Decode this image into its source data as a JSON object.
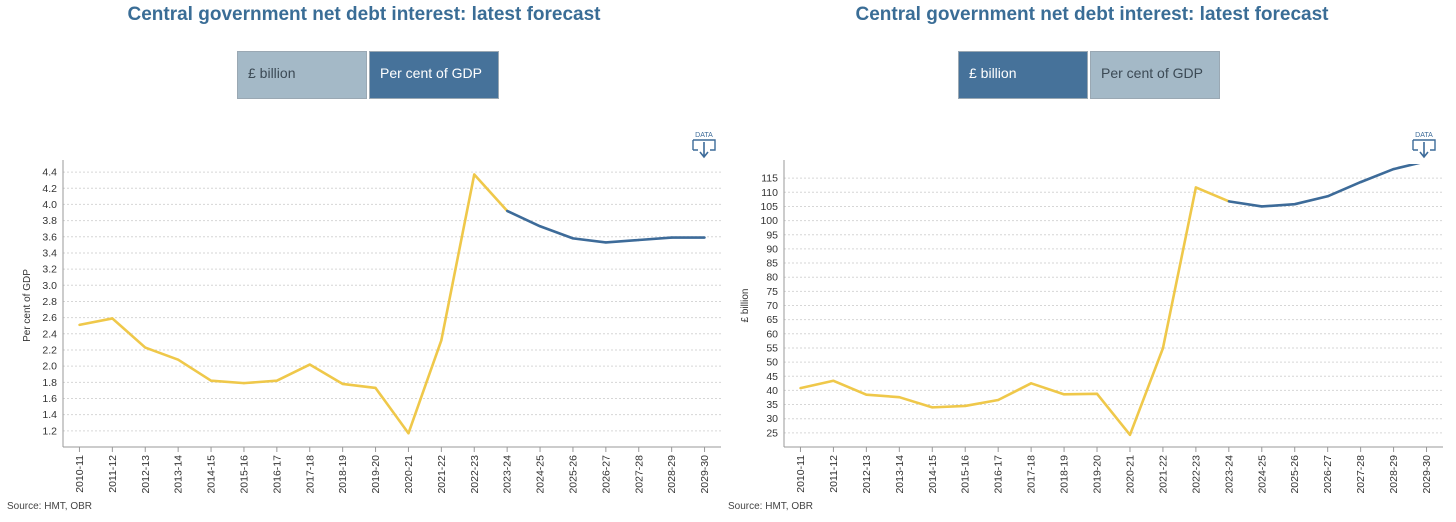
{
  "colors": {
    "historical": "#efc84a",
    "forecast": "#3d6b99",
    "active_tab": "#46729a",
    "inactive_tab": "#a4b9c7",
    "title": "#3a6d96"
  },
  "left_panel": {
    "title": "Central government net debt interest: latest forecast",
    "tabs": [
      {
        "label": "£ billion",
        "state": "inactive"
      },
      {
        "label": "Per cent of GDP",
        "state": "active"
      }
    ],
    "data_icon_label": "DATA",
    "source": "Source: HMT, OBR"
  },
  "right_panel": {
    "title": "Central government net debt interest: latest forecast",
    "tabs": [
      {
        "label": "£ billion",
        "state": "active"
      },
      {
        "label": "Per cent of GDP",
        "state": "inactive"
      }
    ],
    "data_icon_label": "DATA",
    "source": "Source: HMT, OBR"
  },
  "chart_data": [
    {
      "type": "line",
      "title": "Central government net debt interest: latest forecast",
      "xlabel": "",
      "ylabel": "Per cent of GDP",
      "ylim": [
        1.0,
        4.5
      ],
      "yticks": [
        1.2,
        1.4,
        1.6,
        1.8,
        2.0,
        2.2,
        2.4,
        2.6,
        2.8,
        3.0,
        3.2,
        3.4,
        3.6,
        3.8,
        4.0,
        4.2,
        4.4
      ],
      "categories": [
        "2010-11",
        "2011-12",
        "2012-13",
        "2013-14",
        "2014-15",
        "2015-16",
        "2016-17",
        "2017-18",
        "2018-19",
        "2019-20",
        "2020-21",
        "2021-22",
        "2022-23",
        "2023-24",
        "2024-25",
        "2025-26",
        "2026-27",
        "2027-28",
        "2028-29",
        "2029-30"
      ],
      "grid": true,
      "series": [
        {
          "role": "outturn",
          "values": [
            2.51,
            2.59,
            2.23,
            2.08,
            1.82,
            1.79,
            1.82,
            2.02,
            1.78,
            1.73,
            1.17,
            2.32,
            4.37,
            3.92,
            null,
            null,
            null,
            null,
            null,
            null
          ]
        },
        {
          "role": "forecast",
          "values": [
            null,
            null,
            null,
            null,
            null,
            null,
            null,
            null,
            null,
            null,
            null,
            null,
            null,
            3.92,
            3.73,
            3.58,
            3.53,
            3.56,
            3.59,
            3.59
          ]
        }
      ]
    },
    {
      "type": "line",
      "title": "Central government net debt interest: latest forecast",
      "xlabel": "",
      "ylabel": "£ billion",
      "ylim": [
        20,
        120
      ],
      "yticks": [
        25,
        30,
        35,
        40,
        45,
        50,
        55,
        60,
        65,
        70,
        75,
        80,
        85,
        90,
        95,
        100,
        105,
        110,
        115
      ],
      "categories": [
        "2010-11",
        "2011-12",
        "2012-13",
        "2013-14",
        "2014-15",
        "2015-16",
        "2016-17",
        "2017-18",
        "2018-19",
        "2019-20",
        "2020-21",
        "2021-22",
        "2022-23",
        "2023-24",
        "2024-25",
        "2025-26",
        "2026-27",
        "2027-28",
        "2028-29",
        "2029-30"
      ],
      "grid": true,
      "series": [
        {
          "role": "outturn",
          "values": [
            40.8,
            43.4,
            38.5,
            37.6,
            34.0,
            34.5,
            36.6,
            42.5,
            38.6,
            38.8,
            24.3,
            54.9,
            111.7,
            106.8,
            null,
            null,
            null,
            null,
            null,
            null
          ]
        },
        {
          "role": "forecast",
          "values": [
            null,
            null,
            null,
            null,
            null,
            null,
            null,
            null,
            null,
            null,
            null,
            null,
            null,
            106.8,
            105.0,
            105.8,
            108.6,
            113.6,
            118.2,
            121.0
          ]
        }
      ]
    }
  ]
}
